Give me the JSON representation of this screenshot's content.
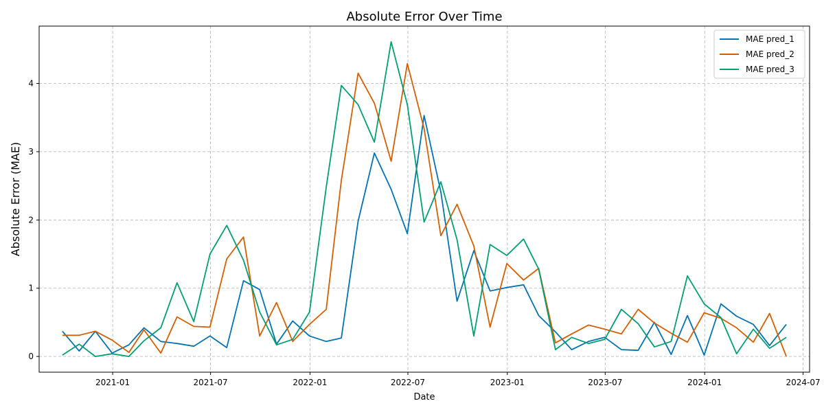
{
  "chart_data": {
    "type": "line",
    "title": "Absolute Error Over Time",
    "xlabel": "Date",
    "ylabel": "Absolute Error (MAE)",
    "x": [
      "2020-09-30",
      "2020-10-31",
      "2020-11-30",
      "2020-12-31",
      "2021-01-31",
      "2021-02-28",
      "2021-03-31",
      "2021-04-30",
      "2021-05-31",
      "2021-06-30",
      "2021-07-31",
      "2021-08-31",
      "2021-09-30",
      "2021-10-31",
      "2021-11-30",
      "2021-12-31",
      "2022-01-31",
      "2022-02-28",
      "2022-03-31",
      "2022-04-30",
      "2022-05-31",
      "2022-06-30",
      "2022-07-31",
      "2022-08-31",
      "2022-09-30",
      "2022-10-31",
      "2022-11-30",
      "2022-12-31",
      "2023-01-31",
      "2023-02-28",
      "2023-03-31",
      "2023-04-30",
      "2023-05-31",
      "2023-06-30",
      "2023-07-31",
      "2023-08-31",
      "2023-09-30",
      "2023-10-31",
      "2023-11-30",
      "2023-12-31",
      "2024-01-31",
      "2024-02-29",
      "2024-03-31",
      "2024-04-30",
      "2024-05-31"
    ],
    "series": [
      {
        "name": "MAE pred_1",
        "color": "#0072B2",
        "values": [
          0.37,
          0.08,
          0.37,
          0.05,
          0.17,
          0.42,
          0.22,
          0.19,
          0.15,
          0.3,
          0.13,
          1.11,
          0.98,
          0.18,
          0.52,
          0.3,
          0.22,
          0.27,
          1.98,
          2.98,
          2.45,
          1.8,
          3.53,
          2.41,
          0.81,
          1.55,
          0.96,
          1.01,
          1.05,
          0.6,
          0.36,
          0.1,
          0.22,
          0.28,
          0.1,
          0.09,
          0.5,
          0.03,
          0.6,
          0.02,
          0.77,
          0.59,
          0.47,
          0.16,
          0.47
        ]
      },
      {
        "name": "MAE pred_2",
        "color": "#D55E00",
        "values": [
          0.31,
          0.31,
          0.37,
          0.24,
          0.06,
          0.39,
          0.05,
          0.58,
          0.44,
          0.43,
          1.43,
          1.75,
          0.3,
          0.79,
          0.22,
          0.47,
          0.69,
          2.58,
          4.15,
          3.71,
          2.86,
          4.29,
          3.34,
          1.77,
          2.23,
          1.62,
          0.43,
          1.36,
          1.12,
          1.29,
          0.2,
          0.33,
          0.46,
          0.4,
          0.33,
          0.69,
          0.49,
          0.34,
          0.21,
          0.64,
          0.56,
          0.42,
          0.21,
          0.63,
          0.0
        ]
      },
      {
        "name": "MAE pred_3",
        "color": "#009E73",
        "values": [
          0.02,
          0.18,
          0.0,
          0.04,
          0.0,
          0.23,
          0.42,
          1.08,
          0.51,
          1.5,
          1.92,
          1.41,
          0.65,
          0.17,
          0.25,
          0.65,
          2.48,
          3.97,
          3.69,
          3.14,
          4.61,
          3.69,
          1.97,
          2.56,
          1.71,
          0.3,
          1.64,
          1.48,
          1.72,
          1.28,
          0.1,
          0.28,
          0.19,
          0.25,
          0.69,
          0.48,
          0.14,
          0.22,
          1.18,
          0.77,
          0.57,
          0.04,
          0.4,
          0.12,
          0.28
        ]
      }
    ],
    "xticks": [
      {
        "date": "2021-01-01",
        "label": "2021-01"
      },
      {
        "date": "2021-07-01",
        "label": "2021-07"
      },
      {
        "date": "2022-01-01",
        "label": "2022-01"
      },
      {
        "date": "2022-07-01",
        "label": "2022-07"
      },
      {
        "date": "2023-01-01",
        "label": "2023-01"
      },
      {
        "date": "2023-07-01",
        "label": "2023-07"
      },
      {
        "date": "2024-01-01",
        "label": "2024-01"
      },
      {
        "date": "2024-07-01",
        "label": "2024-07"
      }
    ],
    "yticks": [
      0,
      1,
      2,
      3,
      4
    ],
    "xlim": [
      "2020-08-18",
      "2024-07-13"
    ],
    "ylim": [
      -0.23,
      4.84
    ],
    "grid": true,
    "legend_position": "top-right"
  }
}
